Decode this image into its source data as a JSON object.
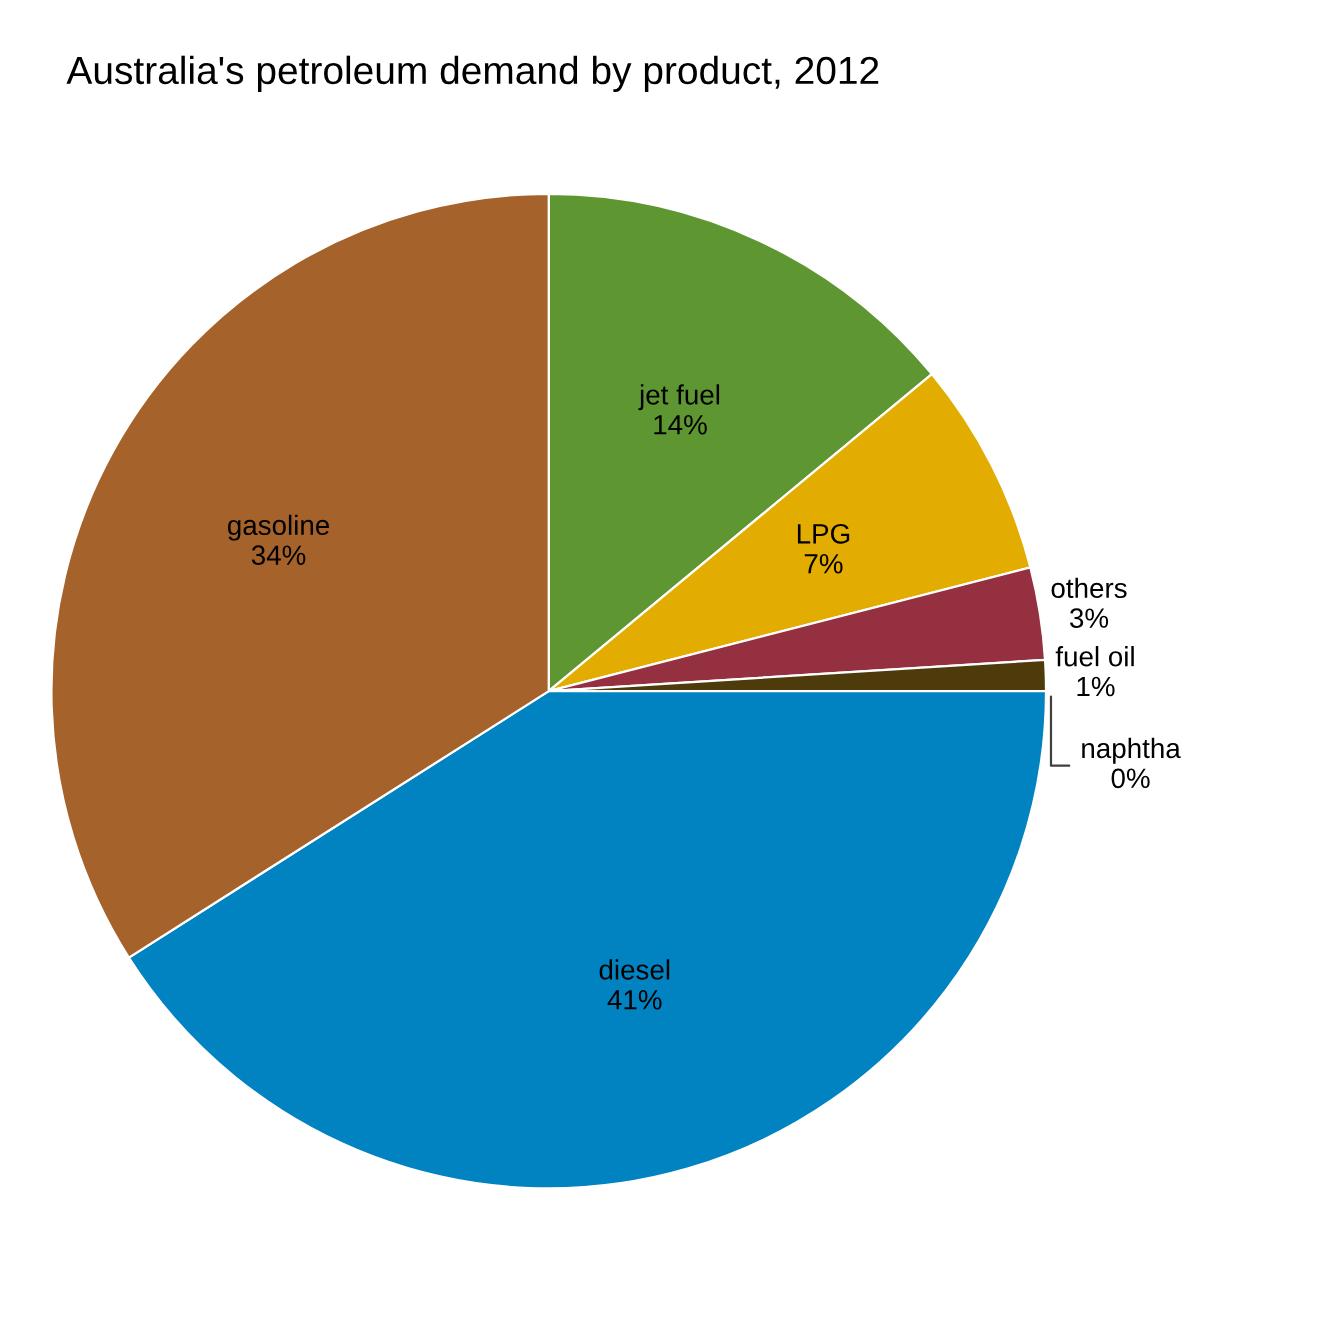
{
  "chart_data": {
    "type": "pie",
    "title": "Australia's petroleum demand by product, 2012",
    "categories": [
      "jet fuel",
      "LPG",
      "others",
      "fuel oil",
      "naphtha",
      "diesel",
      "gasoline"
    ],
    "values": [
      14,
      7,
      3,
      1,
      0,
      41,
      34
    ],
    "value_labels": [
      "14%",
      "7%",
      "3%",
      "1%",
      "0%",
      "41%",
      "34%"
    ],
    "colors": [
      "#5e9732",
      "#e3ac00",
      "#953040",
      "#4d3b0c",
      "#a0b0c0",
      "#0083c0",
      "#a5622a"
    ]
  }
}
